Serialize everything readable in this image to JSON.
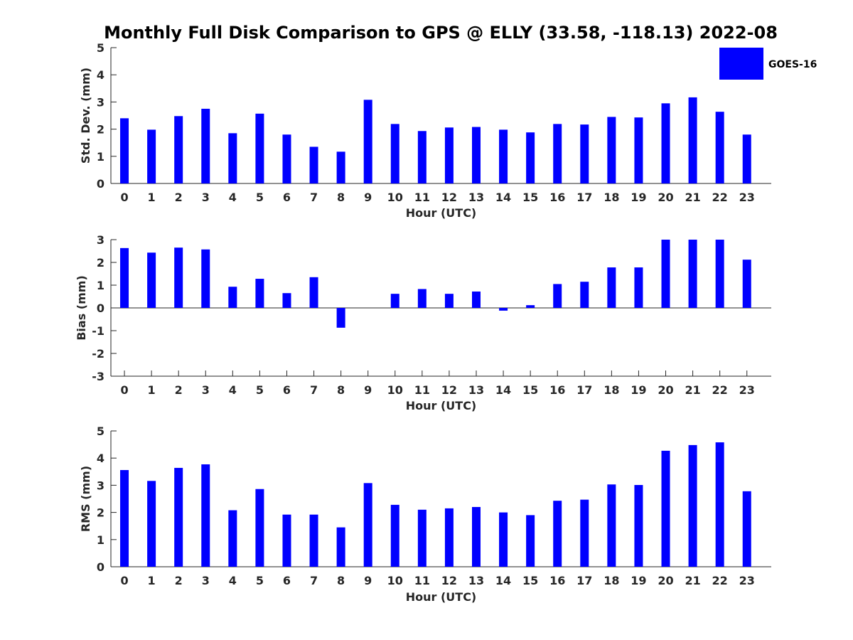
{
  "figure_title": "Monthly Full Disk Comparison to GPS @ ELLY (33.58, -118.13) 2022-08",
  "legend": {
    "label": "GOES-16",
    "color": "#0000ff"
  },
  "chart_data": [
    {
      "type": "bar",
      "title": "",
      "xlabel": "Hour (UTC)",
      "ylabel": "Std. Dev. (mm)",
      "categories": [
        "0",
        "1",
        "2",
        "3",
        "4",
        "5",
        "6",
        "7",
        "8",
        "9",
        "10",
        "11",
        "12",
        "13",
        "14",
        "15",
        "16",
        "17",
        "18",
        "19",
        "20",
        "21",
        "22",
        "23"
      ],
      "series": [
        {
          "name": "GOES-16",
          "color": "#0000ff",
          "values": [
            2.4,
            1.98,
            2.48,
            2.75,
            1.85,
            2.57,
            1.8,
            1.35,
            1.17,
            3.08,
            2.19,
            1.93,
            2.06,
            2.08,
            1.98,
            1.88,
            2.19,
            2.17,
            2.45,
            2.43,
            2.95,
            3.17,
            2.64,
            1.8
          ]
        }
      ],
      "ylim": [
        0,
        5
      ],
      "yticks": [
        "0",
        "1",
        "2",
        "3",
        "4",
        "5"
      ],
      "grid": false
    },
    {
      "type": "bar",
      "title": "",
      "xlabel": "Hour (UTC)",
      "ylabel": "Bias (mm)",
      "categories": [
        "0",
        "1",
        "2",
        "3",
        "4",
        "5",
        "6",
        "7",
        "8",
        "9",
        "10",
        "11",
        "12",
        "13",
        "14",
        "15",
        "16",
        "17",
        "18",
        "19",
        "20",
        "21",
        "22",
        "23"
      ],
      "series": [
        {
          "name": "GOES-16",
          "color": "#0000ff",
          "values": [
            2.63,
            2.43,
            2.65,
            2.57,
            0.93,
            1.28,
            0.65,
            1.35,
            -0.87,
            0,
            0.62,
            0.83,
            0.62,
            0.72,
            -0.12,
            0.12,
            1.05,
            1.15,
            1.78,
            1.78,
            3.0,
            3.0,
            3.0,
            2.12
          ]
        }
      ],
      "ylim": [
        -3,
        3
      ],
      "yticks": [
        "-3",
        "-2",
        "-1",
        "0",
        "1",
        "2",
        "3"
      ],
      "grid": false
    },
    {
      "type": "bar",
      "title": "",
      "xlabel": "Hour (UTC)",
      "ylabel": "RMS (mm)",
      "categories": [
        "0",
        "1",
        "2",
        "3",
        "4",
        "5",
        "6",
        "7",
        "8",
        "9",
        "10",
        "11",
        "12",
        "13",
        "14",
        "15",
        "16",
        "17",
        "18",
        "19",
        "20",
        "21",
        "22",
        "23"
      ],
      "series": [
        {
          "name": "GOES-16",
          "color": "#0000ff",
          "values": [
            3.56,
            3.16,
            3.64,
            3.77,
            2.08,
            2.86,
            1.92,
            1.92,
            1.45,
            3.08,
            2.28,
            2.1,
            2.15,
            2.2,
            2.0,
            1.9,
            2.43,
            2.47,
            3.03,
            3.01,
            4.27,
            4.48,
            4.58,
            2.78
          ]
        }
      ],
      "ylim": [
        0,
        5
      ],
      "yticks": [
        "0",
        "1",
        "2",
        "3",
        "4",
        "5"
      ],
      "grid": false
    }
  ]
}
